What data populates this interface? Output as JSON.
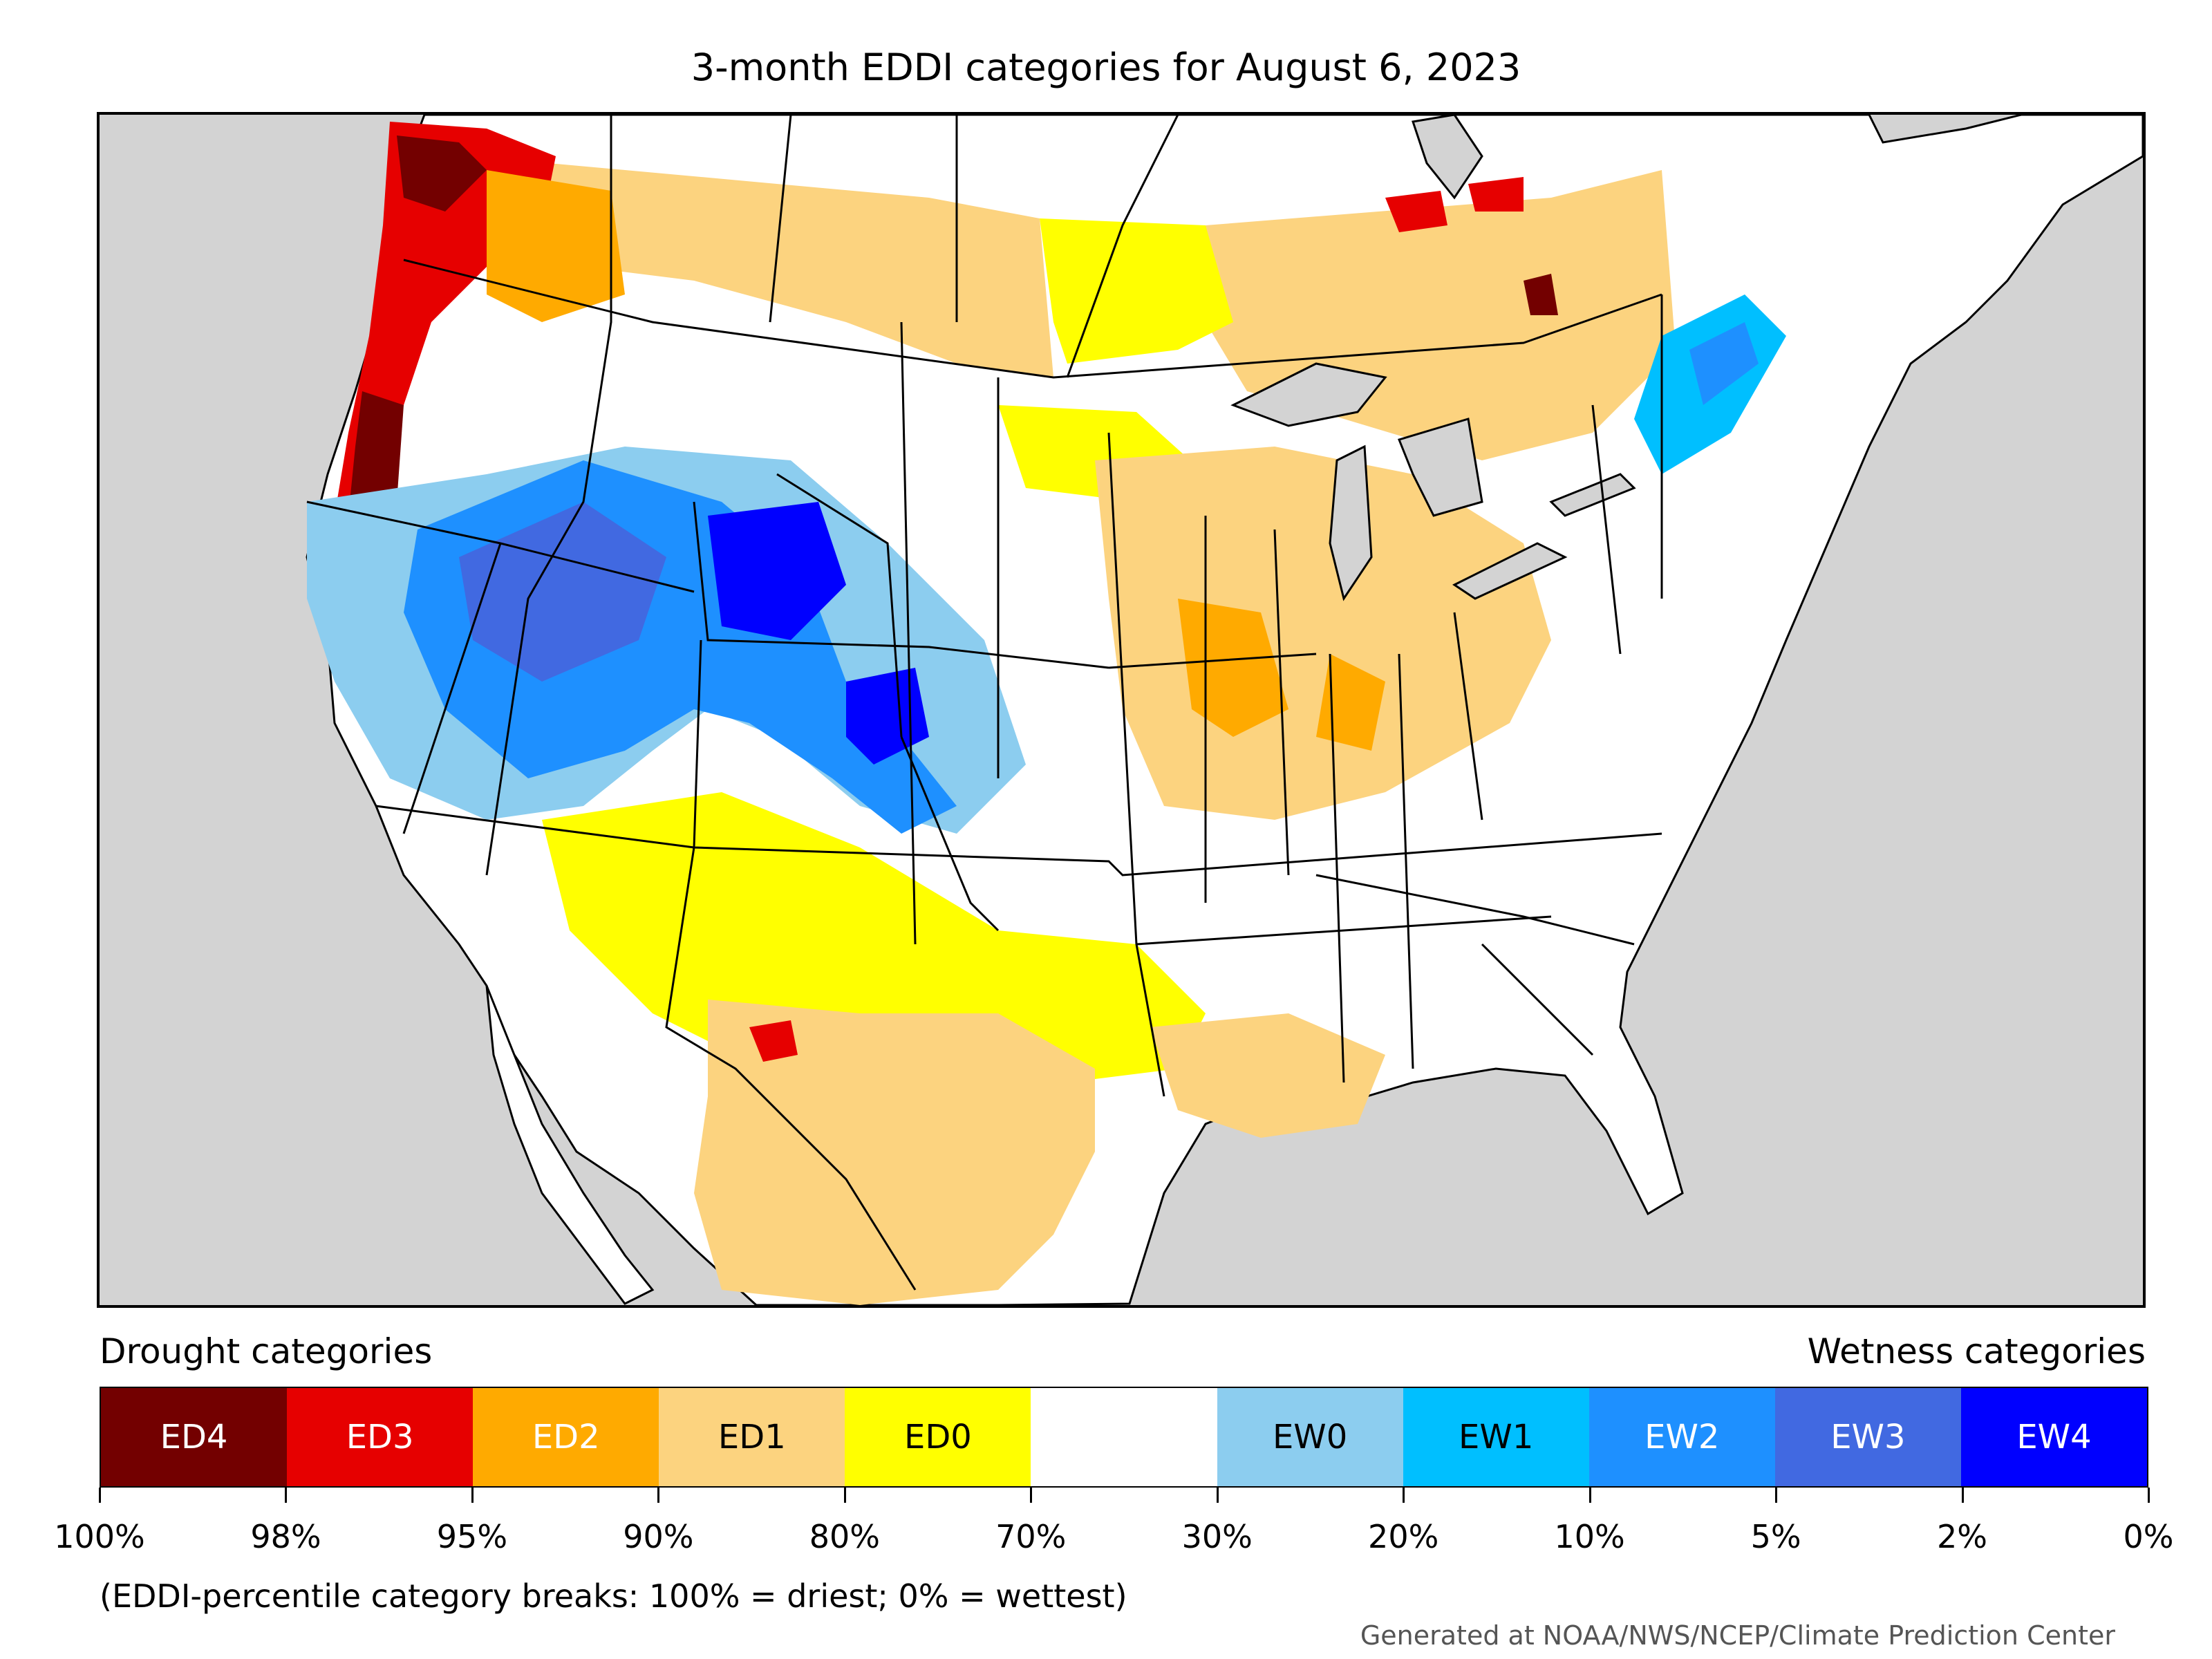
{
  "title": "3-month EDDI categories for August 6, 2023",
  "legend": {
    "drought_heading": "Drought categories",
    "wetness_heading": "Wetness categories",
    "categories": [
      {
        "label": "ED4",
        "color": "#730000",
        "text_color": "#ffffff"
      },
      {
        "label": "ED3",
        "color": "#e60000",
        "text_color": "#ffffff"
      },
      {
        "label": "ED2",
        "color": "#ffaa00",
        "text_color": "#ffffff"
      },
      {
        "label": "ED1",
        "color": "#fcd37f",
        "text_color": "#000000"
      },
      {
        "label": "ED0",
        "color": "#ffff00",
        "text_color": "#000000"
      },
      {
        "label": "",
        "color": "#ffffff",
        "text_color": "#000000"
      },
      {
        "label": "EW0",
        "color": "#8ccdef",
        "text_color": "#000000"
      },
      {
        "label": "EW1",
        "color": "#00bfff",
        "text_color": "#000000"
      },
      {
        "label": "EW2",
        "color": "#1e90ff",
        "text_color": "#ffffff"
      },
      {
        "label": "EW3",
        "color": "#4169e1",
        "text_color": "#ffffff"
      },
      {
        "label": "EW4",
        "color": "#0000ff",
        "text_color": "#ffffff"
      }
    ],
    "tick_labels": [
      "100%",
      "98%",
      "95%",
      "90%",
      "80%",
      "70%",
      "30%",
      "20%",
      "10%",
      "5%",
      "2%",
      "0%"
    ]
  },
  "note": "(EDDI-percentile category breaks: 100% = driest; 0% = wettest)",
  "credit": "Generated at NOAA/NWS/NCEP/Climate Prediction Center",
  "map": {
    "ocean_color": "#d3d3d3",
    "land_color": "#ffffff",
    "border_color": "#000000"
  }
}
